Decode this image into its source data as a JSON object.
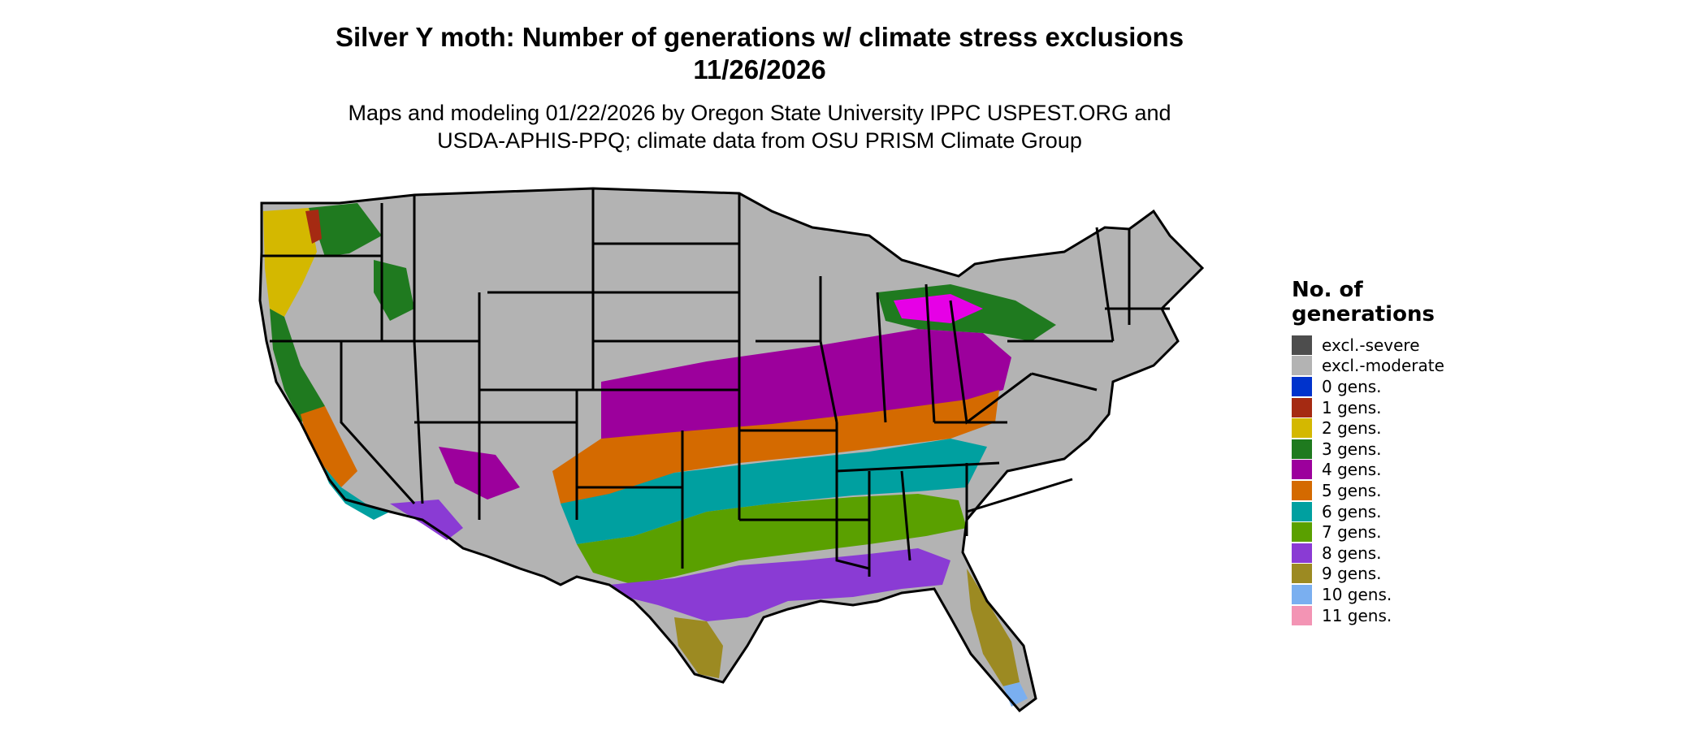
{
  "title": {
    "line1": "Silver Y moth: Number of generations w/ climate stress exclusions",
    "line2": "11/26/2026"
  },
  "subtitle": {
    "line1": "Maps and modeling 01/22/2026 by Oregon State University IPPC USPEST.ORG and",
    "line2": "USDA-APHIS-PPQ; climate data from OSU PRISM Climate Group"
  },
  "legend": {
    "title_line1": "No. of",
    "title_line2": "generations",
    "items": [
      {
        "label": "excl.-severe",
        "color": "#4d4d4d"
      },
      {
        "label": "excl.-moderate",
        "color": "#b3b3b3"
      },
      {
        "label": "0 gens.",
        "color": "#0033cc"
      },
      {
        "label": "1 gens.",
        "color": "#a52a12"
      },
      {
        "label": "2 gens.",
        "color": "#d4b800"
      },
      {
        "label": "3 gens.",
        "color": "#1f7a1f"
      },
      {
        "label": "4 gens.",
        "color": "#9c009c"
      },
      {
        "label": "5 gens.",
        "color": "#d46a00"
      },
      {
        "label": "6 gens.",
        "color": "#00a0a0"
      },
      {
        "label": "7 gens.",
        "color": "#5aa000"
      },
      {
        "label": "8 gens.",
        "color": "#8a3bd4"
      },
      {
        "label": "9 gens.",
        "color": "#9c8a22"
      },
      {
        "label": "10 gens.",
        "color": "#7aaff0"
      },
      {
        "label": "11 gens.",
        "color": "#f394b4"
      }
    ]
  },
  "map": {
    "region": "Conterminous United States",
    "outline_color": "#000000",
    "excluded_color": "#b3b3b3"
  }
}
